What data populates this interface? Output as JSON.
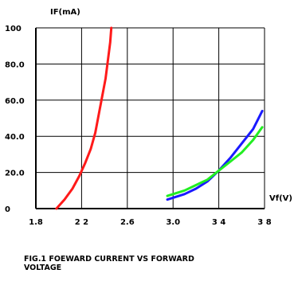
{
  "caption": "FIG.1 FOEWARD CURRENT VS FORWARD\nVOLTAGE",
  "chart_data": {
    "type": "line",
    "title": "",
    "xlabel": "Vf(V)",
    "ylabel": "IF(mA)",
    "xlim": [
      1.8,
      3.8
    ],
    "ylim": [
      0,
      100
    ],
    "grid": true,
    "x_ticks": [
      1.8,
      2.2,
      2.6,
      3.0,
      3.4,
      3.8
    ],
    "x_tick_labels": [
      "1.8",
      "2 2",
      "2.6",
      "3.0",
      "3 4",
      "3 8"
    ],
    "y_ticks": [
      0,
      20,
      40,
      60,
      80,
      100
    ],
    "y_tick_labels": [
      "0",
      "20.0",
      "40.0",
      "60.0",
      "80.0",
      "100"
    ],
    "series": [
      {
        "color": "#ff1a1a",
        "points": [
          [
            1.98,
            0
          ],
          [
            2.05,
            5
          ],
          [
            2.12,
            11
          ],
          [
            2.18,
            18
          ],
          [
            2.23,
            25
          ],
          [
            2.28,
            33
          ],
          [
            2.32,
            42
          ],
          [
            2.35,
            52
          ],
          [
            2.38,
            62
          ],
          [
            2.41,
            72
          ],
          [
            2.43,
            82
          ],
          [
            2.45,
            92
          ],
          [
            2.46,
            100
          ]
        ]
      },
      {
        "color": "#1a1aff",
        "points": [
          [
            2.95,
            5
          ],
          [
            3.1,
            8
          ],
          [
            3.2,
            11
          ],
          [
            3.3,
            15
          ],
          [
            3.4,
            21
          ],
          [
            3.5,
            28
          ],
          [
            3.6,
            36
          ],
          [
            3.7,
            44
          ],
          [
            3.78,
            54
          ]
        ]
      },
      {
        "color": "#22ee22",
        "points": [
          [
            2.95,
            7
          ],
          [
            3.1,
            10
          ],
          [
            3.2,
            13
          ],
          [
            3.3,
            16
          ],
          [
            3.4,
            21
          ],
          [
            3.5,
            26
          ],
          [
            3.6,
            31
          ],
          [
            3.7,
            38
          ],
          [
            3.78,
            45
          ]
        ]
      }
    ]
  }
}
